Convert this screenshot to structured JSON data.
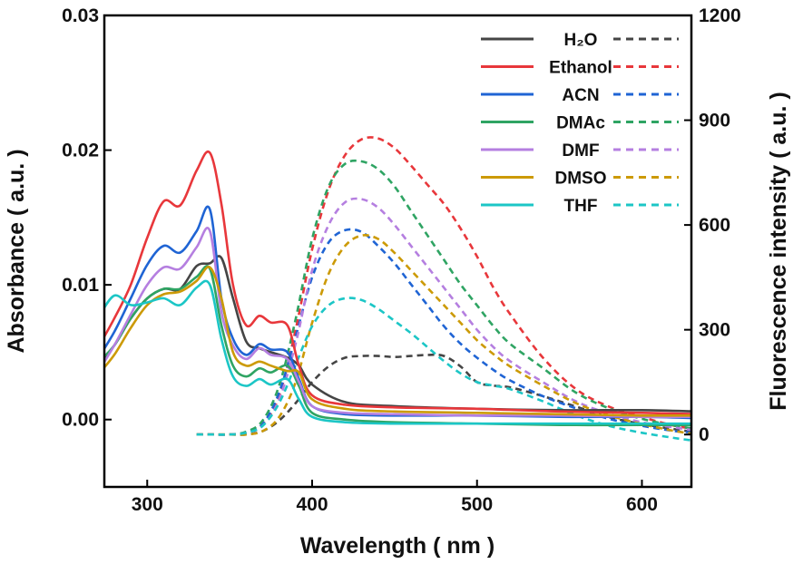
{
  "chart_data": {
    "type": "line",
    "xlabel": "Wavelength ( nm )",
    "ylabel": "Absorbance ( a.u. )",
    "y2label": "Fluorescence intensity ( a.u. )",
    "xlim": [
      274,
      630
    ],
    "ylim": [
      -0.005,
      0.03
    ],
    "y2lim": [
      -150,
      1200
    ],
    "xticks": [
      "300",
      "400",
      "500",
      "600"
    ],
    "xtick_values": [
      300,
      400,
      500,
      600
    ],
    "yticks": [
      "0.00",
      "0.01",
      "0.02",
      "0.03"
    ],
    "ytick_values": [
      0,
      0.01,
      0.02,
      0.03
    ],
    "y2ticks": [
      "0",
      "300",
      "600",
      "900",
      "1200"
    ],
    "y2tick_values": [
      0,
      300,
      600,
      900,
      1200
    ],
    "grid": false,
    "legend_placement": "top-right",
    "legend_note": "solid = absorbance (left axis), dashed = fluorescence (right axis)",
    "abs_x": [
      270,
      280,
      290,
      300,
      310,
      320,
      330,
      338,
      345,
      352,
      360,
      368,
      375,
      385,
      392,
      400,
      420,
      450,
      500,
      550,
      600,
      635
    ],
    "fl_x": [
      330,
      340,
      350,
      360,
      370,
      380,
      390,
      400,
      410,
      420,
      430,
      440,
      450,
      460,
      470,
      480,
      490,
      500,
      510,
      520,
      540,
      560,
      580,
      600,
      620,
      635
    ],
    "series": [
      {
        "name": "H₂O",
        "color": "#454545",
        "absorbance": [
          0.004,
          0.0055,
          0.0075,
          0.009,
          0.0097,
          0.0097,
          0.0114,
          0.0116,
          0.012,
          0.009,
          0.0058,
          0.0053,
          0.005,
          0.0046,
          0.004,
          0.0026,
          0.0013,
          0.001,
          0.0008,
          0.0007,
          0.0007,
          0.0006
        ],
        "fluorescence": [
          0,
          0,
          0,
          0,
          10,
          40,
          90,
          150,
          195,
          220,
          225,
          225,
          222,
          225,
          228,
          225,
          195,
          150,
          140,
          135,
          110,
          80,
          50,
          30,
          15,
          5
        ]
      },
      {
        "name": "Ethanol",
        "color": "#e8373b",
        "absorbance": [
          0.0053,
          0.0075,
          0.01,
          0.0135,
          0.0162,
          0.0159,
          0.0185,
          0.0198,
          0.016,
          0.01,
          0.007,
          0.0077,
          0.0072,
          0.007,
          0.004,
          0.0018,
          0.0011,
          0.0009,
          0.0008,
          0.0006,
          0.0005,
          0.0004
        ],
        "fluorescence": [
          0,
          0,
          0,
          5,
          30,
          110,
          300,
          530,
          700,
          800,
          845,
          848,
          820,
          770,
          715,
          660,
          590,
          510,
          420,
          345,
          220,
          130,
          80,
          50,
          25,
          15
        ]
      },
      {
        "name": "ACN",
        "color": "#1f64d4",
        "absorbance": [
          0.0045,
          0.0065,
          0.009,
          0.0115,
          0.0129,
          0.0124,
          0.014,
          0.0156,
          0.009,
          0.006,
          0.0048,
          0.0056,
          0.0052,
          0.005,
          0.003,
          0.001,
          0.0004,
          0.0003,
          0.0003,
          0.0002,
          0.0002,
          0.0001
        ],
        "fluorescence": [
          0,
          0,
          0,
          5,
          30,
          120,
          280,
          450,
          550,
          585,
          580,
          540,
          490,
          430,
          370,
          310,
          260,
          220,
          185,
          155,
          110,
          75,
          45,
          25,
          10,
          5
        ]
      },
      {
        "name": "DMAc",
        "color": "#2fa463",
        "absorbance": [
          0.0042,
          0.0055,
          0.0075,
          0.009,
          0.0097,
          0.0097,
          0.0106,
          0.0112,
          0.007,
          0.004,
          0.0032,
          0.0038,
          0.0035,
          0.004,
          0.0025,
          0.0005,
          0.0,
          -0.0002,
          -0.0003,
          -0.0004,
          -0.0004,
          -0.0004
        ],
        "fluorescence": [
          0,
          0,
          0,
          8,
          40,
          140,
          330,
          560,
          710,
          775,
          782,
          760,
          710,
          640,
          570,
          500,
          430,
          370,
          310,
          260,
          190,
          120,
          75,
          45,
          25,
          15
        ]
      },
      {
        "name": "DMF",
        "color": "#b57fe0",
        "absorbance": [
          0.0035,
          0.0055,
          0.0078,
          0.01,
          0.0113,
          0.0112,
          0.0128,
          0.014,
          0.008,
          0.0055,
          0.0045,
          0.0053,
          0.0048,
          0.0045,
          0.0028,
          0.001,
          0.0005,
          0.0004,
          0.0003,
          0.0003,
          0.0002,
          0.0002
        ],
        "fluorescence": [
          0,
          0,
          0,
          5,
          25,
          100,
          260,
          470,
          600,
          665,
          674,
          650,
          600,
          540,
          480,
          420,
          360,
          300,
          250,
          210,
          150,
          95,
          60,
          35,
          20,
          10
        ]
      },
      {
        "name": "DMSO",
        "color": "#cc9a06",
        "absorbance": [
          0.0033,
          0.0048,
          0.0068,
          0.0085,
          0.0093,
          0.0095,
          0.0103,
          0.0113,
          0.009,
          0.005,
          0.004,
          0.0043,
          0.004,
          0.0036,
          0.0035,
          0.0015,
          0.0008,
          0.0006,
          0.0005,
          0.0004,
          0.0003,
          0.0003
        ],
        "fluorescence": [
          0,
          0,
          0,
          0,
          10,
          50,
          150,
          320,
          460,
          540,
          570,
          560,
          520,
          470,
          420,
          370,
          320,
          270,
          230,
          195,
          140,
          90,
          55,
          30,
          10,
          0
        ]
      },
      {
        "name": "THF",
        "color": "#1cc6c6",
        "absorbance": [
          0.0075,
          0.0092,
          0.0085,
          0.0087,
          0.009,
          0.0085,
          0.0098,
          0.01,
          0.006,
          0.0032,
          0.0025,
          0.003,
          0.0026,
          0.003,
          0.0015,
          0.0002,
          -0.0002,
          -0.0003,
          -0.0003,
          -0.0003,
          -0.0003,
          -0.0003
        ],
        "fluorescence": [
          0,
          0,
          0,
          5,
          25,
          90,
          200,
          310,
          370,
          390,
          385,
          360,
          325,
          290,
          250,
          210,
          175,
          150,
          140,
          130,
          95,
          55,
          25,
          5,
          -10,
          -20
        ]
      }
    ]
  }
}
